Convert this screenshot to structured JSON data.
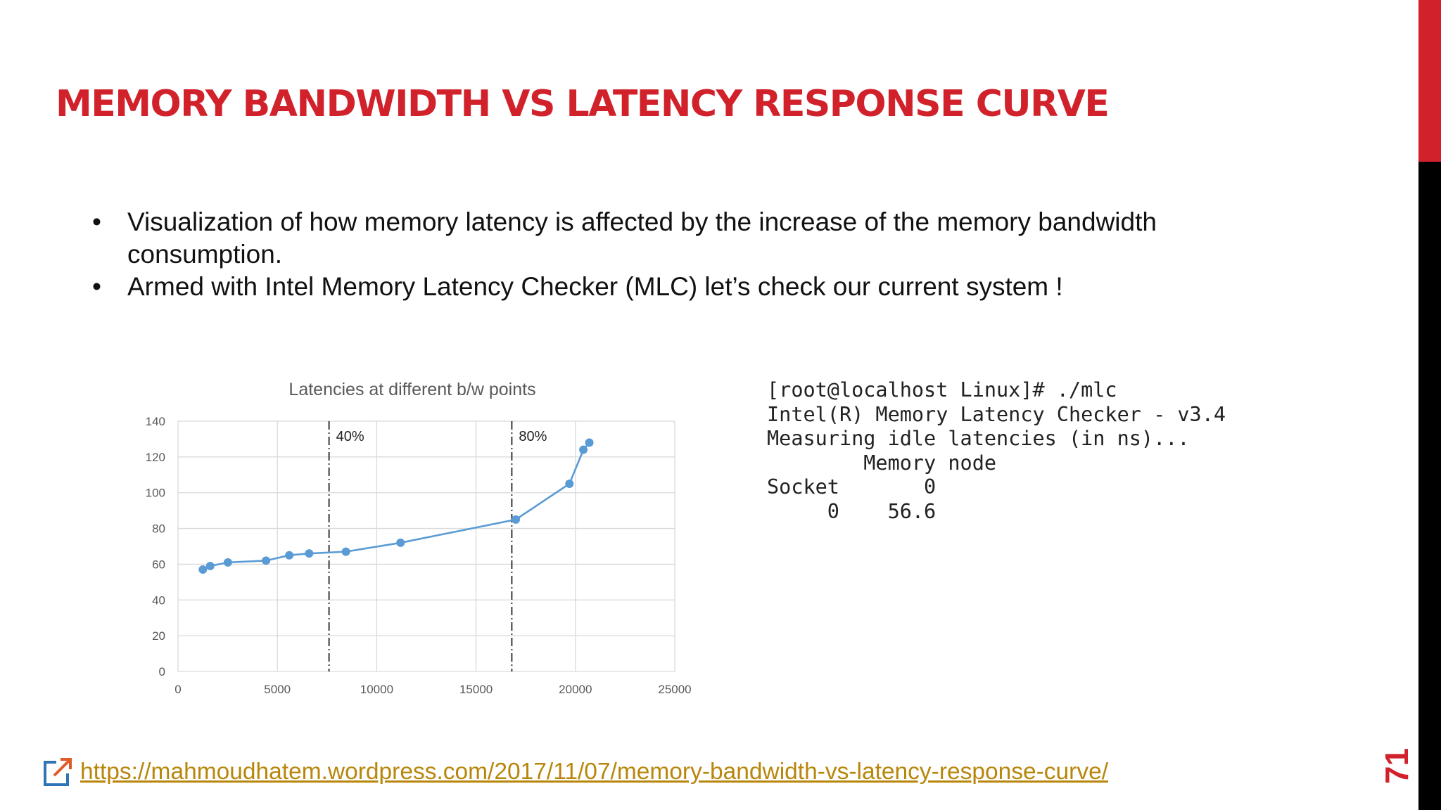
{
  "slide": {
    "title": "MEMORY BANDWIDTH VS LATENCY RESPONSE CURVE",
    "bullets": [
      {
        "text": "Visualization of how memory latency is affected by the increase of the memory bandwidth consumption."
      },
      {
        "text": "Armed with Intel Memory Latency Checker (MLC) let’s check our current system !"
      }
    ],
    "bullet_char": "•",
    "page_number": "71",
    "accent_color": "#d1212b",
    "sidebar_color": "#000000"
  },
  "terminal": {
    "lines": [
      "[root@localhost Linux]# ./mlc",
      "Intel(R) Memory Latency Checker - v3.4",
      "Measuring idle latencies (in ns)...",
      "        Memory node",
      "Socket       0",
      "     0    56.6"
    ]
  },
  "footer": {
    "icon": "external-link-icon",
    "link_text": "https://mahmoudhatem.wordpress.com/2017/11/07/memory-bandwidth-vs-latency-response-curve/",
    "link_color": "#b8860b"
  },
  "chart_data": {
    "type": "line",
    "title": "Latencies at different b/w points",
    "xlabel": "",
    "ylabel": "",
    "xlim": [
      0,
      25000
    ],
    "ylim": [
      0,
      140
    ],
    "x_ticks": [
      "0",
      "5000",
      "10000",
      "15000",
      "20000",
      "25000"
    ],
    "y_ticks": [
      "0",
      "20",
      "40",
      "60",
      "80",
      "100",
      "120",
      "140"
    ],
    "grid": true,
    "series_color": "#5b9bd5",
    "series": [
      {
        "x": [
          1250,
          1620,
          2510,
          4430,
          5600,
          6600,
          8450,
          11200,
          17000,
          19700,
          20400,
          20700
        ],
        "y": [
          57,
          59,
          61,
          62,
          65,
          66,
          67,
          72,
          85,
          105,
          124,
          128
        ]
      }
    ],
    "annotations": [
      {
        "x": 7600,
        "label": "40%"
      },
      {
        "x": 16800,
        "label": "80%"
      }
    ]
  }
}
